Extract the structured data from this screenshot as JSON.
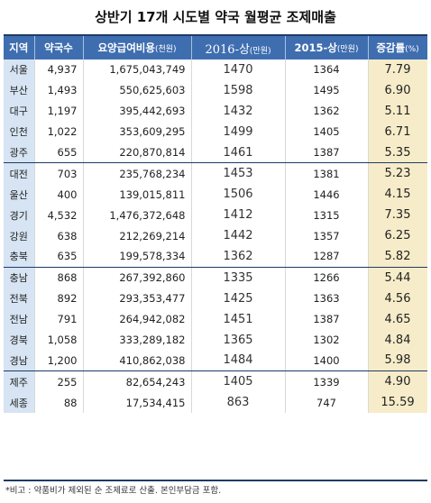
{
  "title": "상반기 17개 시도별 약국 월평균 조제매출",
  "headers": {
    "region": "지역",
    "pharmacy_count": "약국수",
    "benefit_cost": "요양급여비용",
    "benefit_cost_unit": "(천원)",
    "y2016": "2016-상",
    "y2016_unit": "(만원)",
    "y2015": "2015-상",
    "y2015_unit": "(만원)",
    "rate": "증감률",
    "rate_unit": "(%)"
  },
  "chart_data": {
    "type": "table",
    "title": "상반기 17개 시도별 약국 월평균 조제매출",
    "columns": [
      "지역",
      "약국수",
      "요양급여비용(천원)",
      "2016-상(만원)",
      "2015-상(만원)",
      "증감률(%)"
    ],
    "groups": [
      [
        {
          "region": "서울",
          "pharmacies": "4,937",
          "cost": "1,675,043,749",
          "y2016": "1470",
          "y2015": "1364",
          "rate": "7.79"
        },
        {
          "region": "부산",
          "pharmacies": "1,493",
          "cost": "550,625,603",
          "y2016": "1598",
          "y2015": "1495",
          "rate": "6.90"
        },
        {
          "region": "대구",
          "pharmacies": "1,197",
          "cost": "395,442,693",
          "y2016": "1432",
          "y2015": "1362",
          "rate": "5.11"
        },
        {
          "region": "인천",
          "pharmacies": "1,022",
          "cost": "353,609,295",
          "y2016": "1499",
          "y2015": "1405",
          "rate": "6.71"
        },
        {
          "region": "광주",
          "pharmacies": "655",
          "cost": "220,870,814",
          "y2016": "1461",
          "y2015": "1387",
          "rate": "5.35"
        }
      ],
      [
        {
          "region": "대전",
          "pharmacies": "703",
          "cost": "235,768,234",
          "y2016": "1453",
          "y2015": "1381",
          "rate": "5.23"
        },
        {
          "region": "울산",
          "pharmacies": "400",
          "cost": "139,015,811",
          "y2016": "1506",
          "y2015": "1446",
          "rate": "4.15"
        },
        {
          "region": "경기",
          "pharmacies": "4,532",
          "cost": "1,476,372,648",
          "y2016": "1412",
          "y2015": "1315",
          "rate": "7.35"
        },
        {
          "region": "강원",
          "pharmacies": "638",
          "cost": "212,269,214",
          "y2016": "1442",
          "y2015": "1357",
          "rate": "6.25"
        },
        {
          "region": "충북",
          "pharmacies": "635",
          "cost": "199,578,334",
          "y2016": "1362",
          "y2015": "1287",
          "rate": "5.82"
        }
      ],
      [
        {
          "region": "충남",
          "pharmacies": "868",
          "cost": "267,392,860",
          "y2016": "1335",
          "y2015": "1266",
          "rate": "5.44"
        },
        {
          "region": "전북",
          "pharmacies": "892",
          "cost": "293,353,477",
          "y2016": "1425",
          "y2015": "1363",
          "rate": "4.56"
        },
        {
          "region": "전남",
          "pharmacies": "791",
          "cost": "264,942,082",
          "y2016": "1451",
          "y2015": "1387",
          "rate": "4.65"
        },
        {
          "region": "경북",
          "pharmacies": "1,058",
          "cost": "333,289,182",
          "y2016": "1365",
          "y2015": "1302",
          "rate": "4.84"
        },
        {
          "region": "경남",
          "pharmacies": "1,200",
          "cost": "410,862,038",
          "y2016": "1484",
          "y2015": "1400",
          "rate": "5.98"
        }
      ],
      [
        {
          "region": "제주",
          "pharmacies": "255",
          "cost": "82,654,243",
          "y2016": "1405",
          "y2015": "1339",
          "rate": "4.90"
        },
        {
          "region": "세종",
          "pharmacies": "88",
          "cost": "17,534,415",
          "y2016": "863",
          "y2015": "747",
          "rate": "15.59"
        }
      ]
    ]
  },
  "footnote": "*비고 : 약품비가 제외된 순 조제료로 산출. 본인부담금 포함.",
  "colors": {
    "header_bg": "#3f6eb0",
    "region_bg": "#d6e4f3",
    "rate_bg": "#f7ecc9",
    "group_border": "#1f3b66"
  }
}
